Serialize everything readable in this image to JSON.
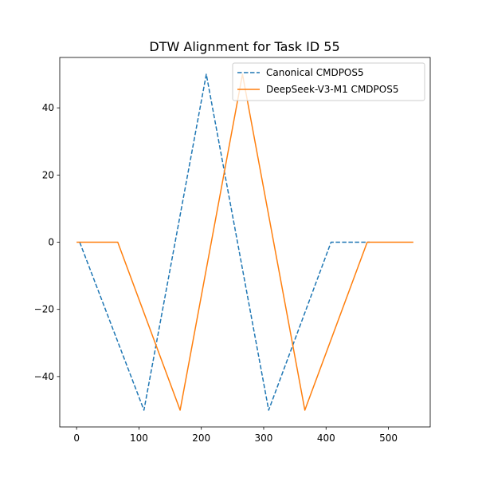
{
  "chart_data": {
    "type": "line",
    "title": "DTW Alignment for Task ID 55",
    "xlabel": "",
    "ylabel": "",
    "xlim": [
      -27,
      567
    ],
    "ylim": [
      -55,
      55
    ],
    "xticks": [
      0,
      100,
      200,
      300,
      400,
      500
    ],
    "yticks": [
      -40,
      -20,
      0,
      20,
      40
    ],
    "grid": false,
    "legend_position": "top-right",
    "series": [
      {
        "name": "Canonical CMDPOS5",
        "color": "#1f77b4",
        "style": "dashed",
        "points": [
          [
            5,
            0
          ],
          [
            108,
            -50
          ],
          [
            208,
            50
          ],
          [
            308,
            -50
          ],
          [
            408,
            0
          ],
          [
            470,
            0
          ]
        ]
      },
      {
        "name": "DeepSeek-V3-M1 CMDPOS5",
        "color": "#ff7f0e",
        "style": "solid",
        "points": [
          [
            0,
            0
          ],
          [
            66,
            0
          ],
          [
            166,
            -50
          ],
          [
            266,
            50
          ],
          [
            366,
            -50
          ],
          [
            466,
            0
          ],
          [
            540,
            0
          ]
        ]
      }
    ]
  }
}
